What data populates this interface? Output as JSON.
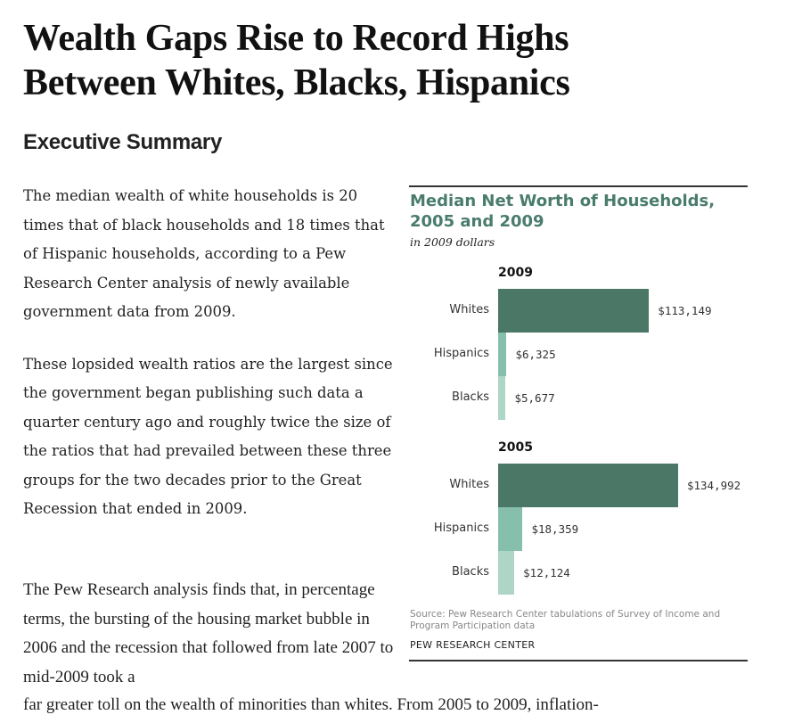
{
  "article": {
    "headline_line1": "Wealth Gaps Rise to Record Highs",
    "headline_line2": "Between Whites, Blacks, Hispanics",
    "section_heading": "Executive Summary",
    "paragraphs": [
      "The median wealth of white households is 20 times that of black households and 18 times that of Hispanic households, according to a Pew Research Center analysis of newly available government data from 2009.",
      "These lopsided wealth ratios are the largest since the government began publishing such data a quarter century ago and roughly twice the size of the ratios that had prevailed between these three groups for the two decades prior to the Great Recession that ended in 2009.",
      "The Pew Research analysis finds that, in percentage terms, the bursting of the housing market bubble in 2006 and the recession that followed from late 2007 to mid-2009 took a",
      "far greater toll on the wealth of minorities than whites. From 2005 to 2009, inflation-"
    ]
  },
  "chart_data": {
    "type": "bar",
    "orientation": "horizontal",
    "title": "Median Net Worth of Households, 2005 and 2009",
    "subtitle": "in 2009 dollars",
    "categories": [
      "Whites",
      "Hispanics",
      "Blacks"
    ],
    "panels": [
      {
        "label": "2009",
        "values": [
          113149,
          6325,
          5677
        ],
        "value_labels": [
          "$113,149",
          "$6,325",
          "$5,677"
        ]
      },
      {
        "label": "2005",
        "values": [
          134992,
          18359,
          12124
        ],
        "value_labels": [
          "$134,992",
          "$18,359",
          "$12,124"
        ]
      }
    ],
    "colors": [
      "#4a7766",
      "#86c0ad",
      "#add6c7"
    ],
    "source": "Source: Pew Research Center tabulations of Survey of Income and Program Participation data",
    "organization": "PEW RESEARCH CENTER",
    "title_color": "#4a7c6d",
    "xlim": [
      0,
      135000
    ],
    "grid": false,
    "legend": "none"
  }
}
